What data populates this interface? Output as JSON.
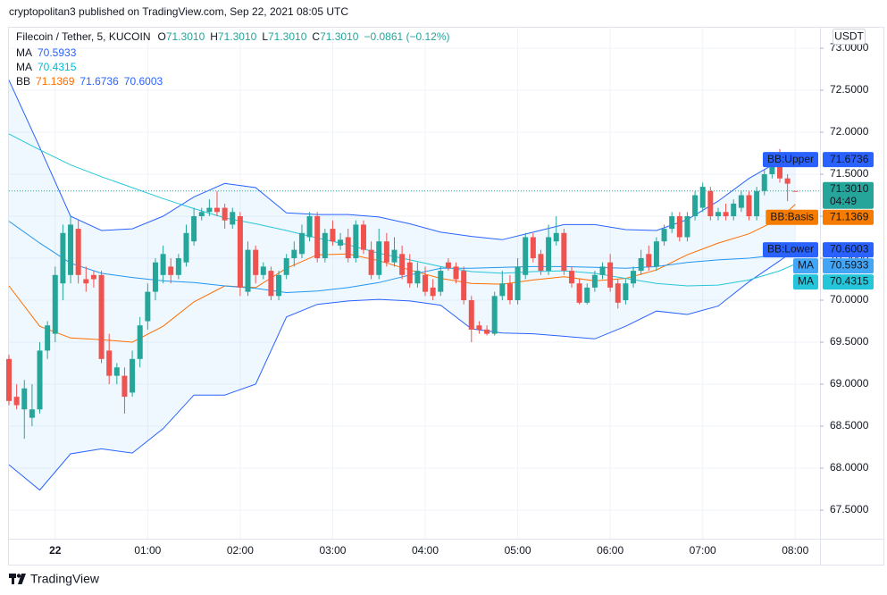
{
  "chart_data": {
    "type": "candlestick",
    "published": "cryptopolitan3 published on TradingView.com, Sep 22, 2021 08:05 UTC",
    "symbol": "Filecoin / Tether, 5, KUCOIN",
    "ohlc": [
      {
        "name": "O",
        "value": "71.3010"
      },
      {
        "name": "H",
        "value": "71.3010"
      },
      {
        "name": "L",
        "value": "71.3010"
      },
      {
        "name": "C",
        "value": "71.3010"
      }
    ],
    "change": "−0.0861 (−0.12%)",
    "indicators": [
      {
        "name": "MA",
        "values": [
          70.5933
        ],
        "colors": [
          "#2962ff"
        ]
      },
      {
        "name": "MA",
        "values": [
          70.4315
        ],
        "colors": [
          "#00bcd4"
        ]
      },
      {
        "name": "BB",
        "values": [
          71.1369,
          71.6736,
          70.6003
        ],
        "colors": [
          "#ff6d00",
          "#2962ff",
          "#2962ff"
        ]
      }
    ],
    "currency": "USDT",
    "brand": "TradingView",
    "categories": [
      null,
      null,
      null,
      null,
      null,
      null,
      "22",
      null,
      null,
      null,
      null,
      null,
      null,
      null,
      null,
      null,
      null,
      null,
      "01:00",
      null,
      null,
      null,
      null,
      null,
      null,
      null,
      null,
      null,
      null,
      null,
      "02:00",
      null,
      null,
      null,
      null,
      null,
      null,
      null,
      null,
      null,
      null,
      null,
      "03:00",
      null,
      null,
      null,
      null,
      null,
      null,
      null,
      null,
      null,
      null,
      null,
      "04:00",
      null,
      null,
      null,
      null,
      null,
      null,
      null,
      null,
      null,
      null,
      null,
      "05:00",
      null,
      null,
      null,
      null,
      null,
      null,
      null,
      null,
      null,
      null,
      null,
      "06:00",
      null,
      null,
      null,
      null,
      null,
      null,
      null,
      null,
      null,
      null,
      null,
      "07:00",
      null,
      null,
      null,
      null,
      null,
      null,
      null,
      null,
      null,
      null,
      null,
      "08:00"
    ],
    "open": [
      69.3,
      68.85,
      68.7,
      68.6,
      68.7,
      69.4,
      69.6,
      70.2,
      70.3,
      70.85,
      70.25,
      70.3,
      70.3,
      69.4,
      69.1,
      69.1,
      68.9,
      69.3,
      69.75,
      70.1,
      70.3,
      70.4,
      70.3,
      70.45,
      70.7,
      71.0,
      71.05,
      71.1,
      71.1,
      70.9,
      71.0,
      70.1,
      70.6,
      70.3,
      70.35,
      70.05,
      70.3,
      70.5,
      70.55,
      70.75,
      71.0,
      70.5,
      70.85,
      70.65,
      70.75,
      70.5,
      70.9,
      70.6,
      70.3,
      70.7,
      70.45,
      70.55,
      70.45,
      70.2,
      70.3,
      70.15,
      70.1,
      70.45,
      70.4,
      70.35,
      70.0,
      69.7,
      69.65,
      69.6,
      70.05,
      70.2,
      70.0,
      70.3,
      70.75,
      70.55,
      70.35,
      70.7,
      70.8,
      70.35,
      70.2,
      69.97,
      70.15,
      70.3,
      70.45,
      70.2,
      70.0,
      70.2,
      70.35,
      70.55,
      70.4,
      70.7,
      70.85,
      71.0,
      70.75,
      71.0,
      71.1,
      71.3,
      71.0,
      71.05,
      71.0,
      71.1,
      71.25,
      71.0,
      71.3,
      71.5,
      71.65,
      71.45,
      71.301
    ],
    "high": [
      69.35,
      69.0,
      69.05,
      69.0,
      69.5,
      69.75,
      70.4,
      70.9,
      71.0,
      70.95,
      70.4,
      70.35,
      70.35,
      69.6,
      69.25,
      69.2,
      69.4,
      69.8,
      70.2,
      70.5,
      70.65,
      70.5,
      70.55,
      70.9,
      71.1,
      71.1,
      71.2,
      71.3,
      71.15,
      71.1,
      71.05,
      70.7,
      70.65,
      70.45,
      70.4,
      70.35,
      70.55,
      70.7,
      70.9,
      71.05,
      71.05,
      70.85,
      70.95,
      70.8,
      70.85,
      70.95,
      70.95,
      70.7,
      70.85,
      70.8,
      70.75,
      70.65,
      70.55,
      70.45,
      70.4,
      70.25,
      70.4,
      70.5,
      70.45,
      70.4,
      70.05,
      69.75,
      69.7,
      70.1,
      70.35,
      70.3,
      70.5,
      70.8,
      70.8,
      70.6,
      70.9,
      71.0,
      70.85,
      70.4,
      70.25,
      70.2,
      70.35,
      70.45,
      70.55,
      70.25,
      70.25,
      70.4,
      70.6,
      70.65,
      70.75,
      70.9,
      71.05,
      71.05,
      71.05,
      71.3,
      71.4,
      71.35,
      71.1,
      71.15,
      71.2,
      71.3,
      71.3,
      71.35,
      71.55,
      71.75,
      71.8,
      71.5,
      71.301
    ],
    "low": [
      68.75,
      68.7,
      68.35,
      68.5,
      68.65,
      69.3,
      69.5,
      70.0,
      70.2,
      70.2,
      70.1,
      70.15,
      69.25,
      69.0,
      69.0,
      68.65,
      68.85,
      69.2,
      69.65,
      70.0,
      70.2,
      70.2,
      70.25,
      70.4,
      70.65,
      70.95,
      71.0,
      71.0,
      70.85,
      70.85,
      70.05,
      70.05,
      70.2,
      70.25,
      70.0,
      70.0,
      70.25,
      70.4,
      70.5,
      70.7,
      70.45,
      70.45,
      70.65,
      70.6,
      70.45,
      70.45,
      70.55,
      70.25,
      70.25,
      70.4,
      70.4,
      70.25,
      70.15,
      70.15,
      70.05,
      70.0,
      70.05,
      70.35,
      70.2,
      69.95,
      69.5,
      69.6,
      69.58,
      69.58,
      70.0,
      69.95,
      69.95,
      70.25,
      70.45,
      70.3,
      70.3,
      70.65,
      70.3,
      70.15,
      69.95,
      69.95,
      70.1,
      70.25,
      70.1,
      69.9,
      69.95,
      70.15,
      70.3,
      70.35,
      70.35,
      70.65,
      70.8,
      70.7,
      70.7,
      70.95,
      71.05,
      70.95,
      70.95,
      70.95,
      70.95,
      71.05,
      70.95,
      70.95,
      71.25,
      71.45,
      71.4,
      71.18,
      71.301
    ],
    "close": [
      68.8,
      68.75,
      68.95,
      68.7,
      69.4,
      69.7,
      70.3,
      70.8,
      70.9,
      70.3,
      70.2,
      70.25,
      69.3,
      69.1,
      69.2,
      68.85,
      69.3,
      69.7,
      70.1,
      70.45,
      70.55,
      70.3,
      70.5,
      70.8,
      71.0,
      71.05,
      71.1,
      71.05,
      70.95,
      71.05,
      70.15,
      70.6,
      70.3,
      70.4,
      70.05,
      70.3,
      70.5,
      70.6,
      70.8,
      71.0,
      70.5,
      70.8,
      70.7,
      70.72,
      70.5,
      70.9,
      70.6,
      70.3,
      70.7,
      70.45,
      70.6,
      70.3,
      70.2,
      70.35,
      70.1,
      70.05,
      70.35,
      70.38,
      70.25,
      70.0,
      69.65,
      69.65,
      69.6,
      70.05,
      70.2,
      70.0,
      70.4,
      70.75,
      70.5,
      70.35,
      70.75,
      70.8,
      70.35,
      70.2,
      69.97,
      70.15,
      70.3,
      70.4,
      70.15,
      69.97,
      70.2,
      70.35,
      70.5,
      70.4,
      70.7,
      70.85,
      71.0,
      70.75,
      71.0,
      71.25,
      71.35,
      71.0,
      71.05,
      71.0,
      71.15,
      71.25,
      71.0,
      71.3,
      71.5,
      71.65,
      71.45,
      71.3871,
      71.301
    ],
    "up_color": "#26a69a",
    "down_color": "#ef5350",
    "lines": [
      {
        "color": "#2962ff",
        "x": [
          0,
          4,
          8,
          12,
          16,
          20,
          24,
          28,
          32,
          36,
          40,
          44,
          48,
          52,
          56,
          60,
          64,
          68,
          72,
          76,
          80,
          84,
          88,
          92,
          96,
          100,
          102
        ],
        "values": [
          72.62,
          71.82,
          71.0,
          70.83,
          70.85,
          71.0,
          71.23,
          71.39,
          71.34,
          71.04,
          71.02,
          71.02,
          70.99,
          70.91,
          70.81,
          70.76,
          70.72,
          70.81,
          70.9,
          70.9,
          70.84,
          70.83,
          70.96,
          71.18,
          71.45,
          71.66,
          71.67
        ]
      },
      {
        "color": "#2962ff",
        "x": [
          0,
          4,
          8,
          12,
          16,
          20,
          24,
          28,
          32,
          36,
          40,
          44,
          48,
          52,
          56,
          60,
          64,
          68,
          72,
          76,
          80,
          84,
          88,
          92,
          96,
          100,
          102
        ],
        "values": [
          68.04,
          67.74,
          68.17,
          68.23,
          68.18,
          68.47,
          68.87,
          68.87,
          69.0,
          69.8,
          69.95,
          69.99,
          70.01,
          69.99,
          69.94,
          69.66,
          69.61,
          69.6,
          69.57,
          69.54,
          69.69,
          69.87,
          69.83,
          69.93,
          70.22,
          70.47,
          70.6
        ]
      },
      {
        "color": "#ff6d00",
        "x": [
          0,
          4,
          8,
          12,
          16,
          20,
          24,
          28,
          32,
          36,
          40,
          44,
          48,
          52,
          56,
          60,
          64,
          68,
          72,
          76,
          80,
          84,
          88,
          92,
          96,
          100,
          102
        ],
        "values": [
          70.17,
          69.69,
          69.55,
          69.53,
          69.5,
          69.69,
          69.98,
          70.17,
          70.15,
          70.38,
          70.54,
          70.55,
          70.47,
          70.36,
          70.26,
          70.2,
          70.19,
          70.24,
          70.28,
          70.23,
          70.26,
          70.36,
          70.54,
          70.68,
          70.79,
          70.97,
          71.14
        ]
      },
      {
        "color": "#2196f3",
        "x": [
          0,
          4,
          8,
          12,
          16,
          20,
          24,
          28,
          32,
          36,
          40,
          44,
          48,
          52,
          56,
          60,
          64,
          68,
          72,
          76,
          80,
          84,
          88,
          92,
          96,
          100,
          102
        ],
        "values": [
          70.94,
          70.68,
          70.44,
          70.32,
          70.27,
          70.23,
          70.21,
          70.17,
          70.14,
          70.09,
          70.11,
          70.15,
          70.21,
          70.3,
          70.38,
          70.38,
          70.39,
          70.4,
          70.4,
          70.39,
          70.38,
          70.4,
          70.45,
          70.48,
          70.5,
          70.54,
          70.59
        ]
      },
      {
        "color": "#26c6da",
        "x": [
          0,
          4,
          8,
          12,
          16,
          20,
          24,
          28,
          32,
          36,
          40,
          44,
          48,
          52,
          56,
          60,
          64,
          68,
          72,
          76,
          80,
          84,
          88,
          92,
          96,
          100,
          102
        ],
        "values": [
          71.98,
          71.79,
          71.61,
          71.47,
          71.34,
          71.21,
          71.09,
          70.98,
          70.91,
          70.83,
          70.74,
          70.66,
          70.56,
          70.48,
          70.4,
          70.34,
          70.32,
          70.34,
          70.35,
          70.32,
          70.26,
          70.2,
          70.17,
          70.18,
          70.24,
          70.35,
          70.43
        ]
      }
    ],
    "band_fill": "rgba(33,150,243,0.07)",
    "last_price": {
      "value": 71.301,
      "label": "71.3010",
      "countdown": "04:49",
      "color": "#26a69a"
    },
    "price_tags": [
      {
        "name": "BB:Upper",
        "value": 71.6736,
        "color": "#2962ff"
      },
      {
        "name": "BB:Basis",
        "value": 71.1369,
        "color": "#f57c00"
      },
      {
        "name": "BB:Lower",
        "value": 70.6003,
        "color": "#2962ff"
      },
      {
        "name": "MA",
        "value": 70.5933,
        "color": "#42a5f5"
      },
      {
        "name": "MA",
        "value": 70.4315,
        "color": "#26c6da"
      }
    ],
    "ylim": [
      67.16,
      73.255
    ],
    "yticks": [
      {
        "value": 67.5,
        "label": "67.5000"
      },
      {
        "value": 68,
        "label": "68.0000"
      },
      {
        "value": 68.5,
        "label": "68.5000"
      },
      {
        "value": 69,
        "label": "69.0000"
      },
      {
        "value": 69.5,
        "label": "69.5000"
      },
      {
        "value": 70,
        "label": "70.0000"
      },
      {
        "value": 70.5,
        "label": "70.5000"
      },
      {
        "value": 71,
        "label": "71.0000"
      },
      {
        "value": 71.5,
        "label": "71.5000"
      },
      {
        "value": 72,
        "label": "72.0000"
      },
      {
        "value": 72.5,
        "label": "72.5000"
      },
      {
        "value": 73,
        "label": "73.0000"
      }
    ],
    "grid": true
  }
}
